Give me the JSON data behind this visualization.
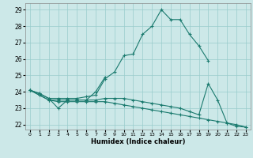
{
  "title": "",
  "xlabel": "Humidex (Indice chaleur)",
  "bg_color": "#cce8e8",
  "line_color": "#1a7a6e",
  "grid_color": "#99cccc",
  "xlim": [
    -0.5,
    23.5
  ],
  "ylim": [
    21.7,
    29.4
  ],
  "yticks": [
    22,
    23,
    24,
    25,
    26,
    27,
    28,
    29
  ],
  "xticks": [
    0,
    1,
    2,
    3,
    4,
    5,
    6,
    7,
    8,
    9,
    10,
    11,
    12,
    13,
    14,
    15,
    16,
    17,
    18,
    19,
    20,
    21,
    22,
    23
  ],
  "lines": [
    {
      "x": [
        0,
        1,
        2,
        3,
        4,
        5,
        6,
        7,
        8,
        9,
        10,
        11,
        12,
        13,
        14,
        15,
        16,
        17,
        18,
        19
      ],
      "y": [
        24.1,
        23.9,
        23.6,
        23.6,
        23.6,
        23.6,
        23.7,
        23.8,
        24.8,
        25.2,
        26.2,
        26.3,
        27.5,
        28.0,
        29.0,
        28.4,
        28.4,
        27.5,
        26.8,
        25.9
      ]
    },
    {
      "x": [
        0,
        1,
        2,
        3,
        4,
        5,
        6,
        7,
        8
      ],
      "y": [
        24.1,
        23.9,
        23.6,
        23.0,
        23.5,
        23.5,
        23.5,
        24.0,
        24.9
      ]
    },
    {
      "x": [
        0,
        1,
        2,
        3,
        4,
        5,
        6,
        7,
        8,
        9,
        10,
        11,
        12,
        13,
        14,
        15,
        16,
        17,
        18,
        19,
        20,
        21,
        22,
        23
      ],
      "y": [
        24.1,
        23.8,
        23.5,
        23.5,
        23.5,
        23.5,
        23.5,
        23.5,
        23.6,
        23.6,
        23.6,
        23.5,
        23.4,
        23.3,
        23.2,
        23.1,
        23.0,
        22.8,
        22.6,
        24.5,
        23.5,
        22.1,
        21.9,
        21.85
      ]
    },
    {
      "x": [
        0,
        1,
        2,
        3,
        4,
        5,
        6,
        7,
        8,
        9,
        10,
        11,
        12,
        13,
        14,
        15,
        16,
        17,
        18,
        19,
        20,
        21,
        22,
        23
      ],
      "y": [
        24.1,
        23.8,
        23.5,
        23.4,
        23.4,
        23.4,
        23.4,
        23.4,
        23.4,
        23.3,
        23.2,
        23.1,
        23.0,
        22.9,
        22.8,
        22.7,
        22.6,
        22.5,
        22.4,
        22.3,
        22.2,
        22.1,
        22.0,
        21.85
      ]
    }
  ]
}
